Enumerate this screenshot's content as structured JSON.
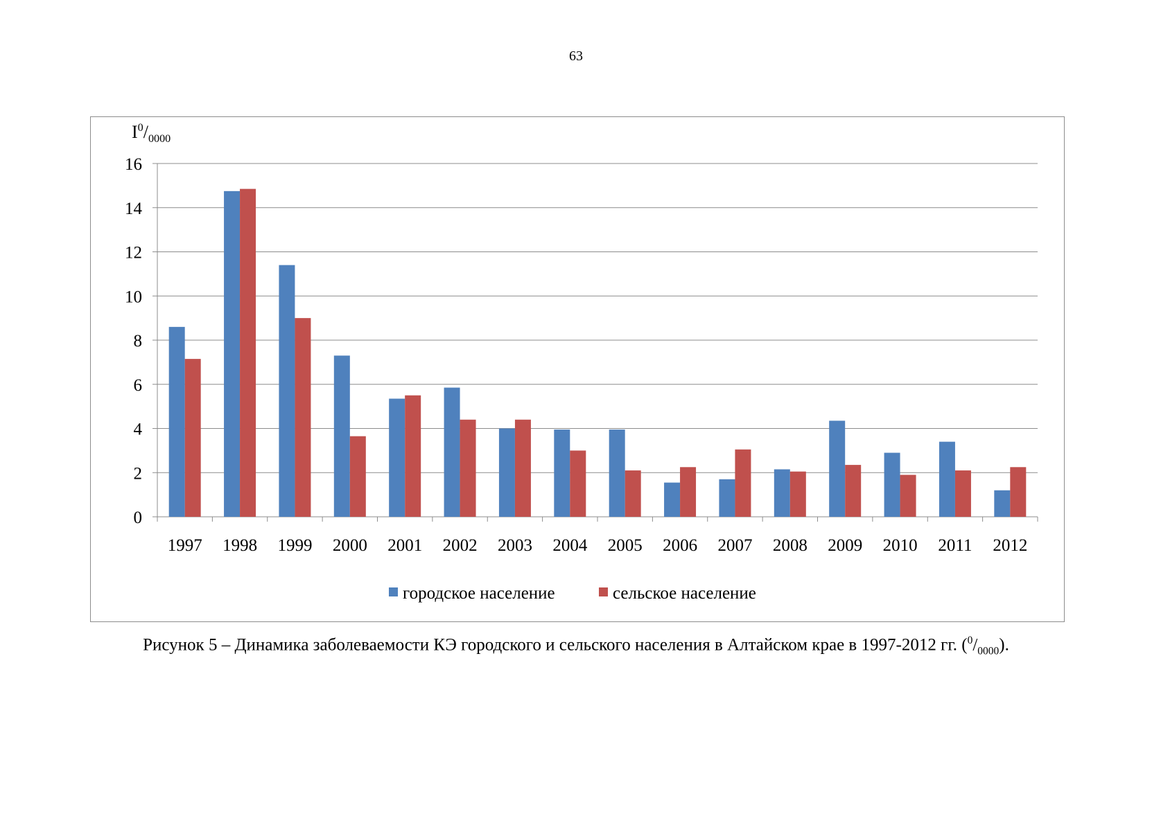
{
  "page": {
    "number": "63"
  },
  "caption": {
    "text_before": "Рисунок 5 – Динамика заболеваемости КЭ городского и сельского населения в Алтайском крае в 1997-2012 гг. (",
    "sup": "0",
    "slash": "/",
    "sub": "0000",
    "text_after": ")."
  },
  "chart_data": {
    "type": "bar",
    "ylabel": {
      "main": "I",
      "sup": "0",
      "slash": "/",
      "sub": "0000"
    },
    "ylim": [
      0,
      16
    ],
    "yticks": [
      0,
      2,
      4,
      6,
      8,
      10,
      12,
      14,
      16
    ],
    "grid": true,
    "legend_position": "bottom",
    "categories": [
      "1997",
      "1998",
      "1999",
      "2000",
      "2001",
      "2002",
      "2003",
      "2004",
      "2005",
      "2006",
      "2007",
      "2008",
      "2009",
      "2010",
      "2011",
      "2012"
    ],
    "series": [
      {
        "name": "городское население",
        "color": "#4F81BD",
        "values": [
          8.6,
          14.75,
          11.4,
          7.3,
          5.35,
          5.85,
          4.0,
          3.95,
          3.95,
          1.55,
          1.7,
          2.15,
          4.35,
          2.9,
          3.4,
          1.2
        ]
      },
      {
        "name": "сельское население",
        "color": "#C0504D",
        "values": [
          7.15,
          14.85,
          9.0,
          3.65,
          5.5,
          4.4,
          4.4,
          3.0,
          2.1,
          2.25,
          3.05,
          2.05,
          2.35,
          1.9,
          2.1,
          2.25
        ]
      }
    ]
  }
}
